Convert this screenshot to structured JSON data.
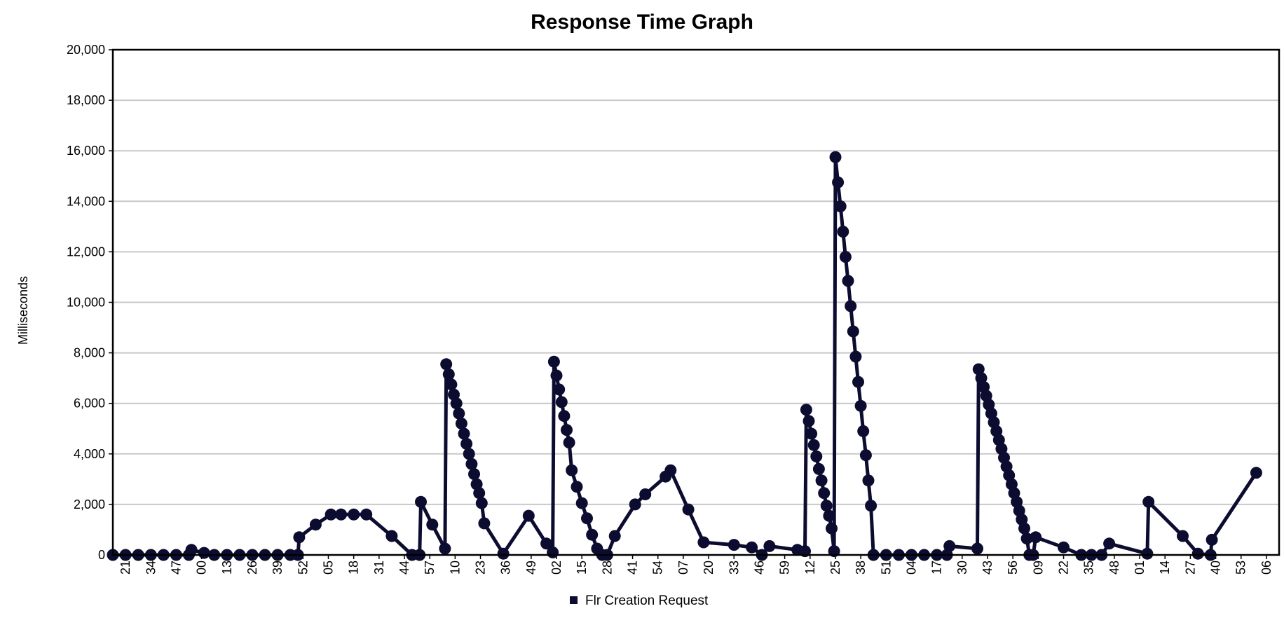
{
  "colors": {
    "series": "#0c0c30",
    "grid": "#c8c8c8",
    "axis": "#000000",
    "background": "#ffffff"
  },
  "chart_data": {
    "type": "line",
    "title": "Response Time Graph",
    "xlabel": "",
    "ylabel": "Milliseconds",
    "ylim": [
      0,
      20000
    ],
    "yticks": [
      "0",
      "2,000",
      "4,000",
      "6,000",
      "8,000",
      "10,000",
      "12,000",
      "14,000",
      "16,000",
      "18,000",
      "20,000"
    ],
    "ytick_values": [
      0,
      2000,
      4000,
      6000,
      8000,
      10000,
      12000,
      14000,
      16000,
      18000,
      20000
    ],
    "xticks": [
      "21",
      "34",
      "47",
      "00",
      "13",
      "26",
      "39",
      "52",
      "05",
      "18",
      "31",
      "44",
      "57",
      "10",
      "23",
      "36",
      "49",
      "02",
      "15",
      "28",
      "41",
      "54",
      "07",
      "20",
      "33",
      "46",
      "59",
      "12",
      "25",
      "38",
      "51",
      "04",
      "17",
      "30",
      "43",
      "56",
      "09",
      "22",
      "35",
      "48",
      "01",
      "14",
      "27",
      "40",
      "53",
      "06"
    ],
    "xlim": [
      0,
      46
    ],
    "grid": true,
    "legend_position": "bottom",
    "series": [
      {
        "name": "Flr Creation Request",
        "points": [
          [
            0,
            0
          ],
          [
            0.5,
            0
          ],
          [
            1,
            0
          ],
          [
            1.5,
            0
          ],
          [
            2,
            0
          ],
          [
            2.5,
            0
          ],
          [
            3,
            0
          ],
          [
            3.1,
            200
          ],
          [
            3.6,
            80
          ],
          [
            4,
            0
          ],
          [
            4.5,
            0
          ],
          [
            5,
            0
          ],
          [
            5.5,
            0
          ],
          [
            6,
            0
          ],
          [
            6.5,
            0
          ],
          [
            7,
            0
          ],
          [
            7.3,
            0
          ],
          [
            7.35,
            700
          ],
          [
            8,
            1200
          ],
          [
            8.6,
            1600
          ],
          [
            9,
            1600
          ],
          [
            9.5,
            1600
          ],
          [
            10,
            1600
          ],
          [
            11,
            750
          ],
          [
            11.8,
            0
          ],
          [
            12.1,
            0
          ],
          [
            12.15,
            2100
          ],
          [
            12.6,
            1200
          ],
          [
            13.1,
            250
          ],
          [
            13.15,
            7550
          ],
          [
            13.25,
            7150
          ],
          [
            13.35,
            6750
          ],
          [
            13.45,
            6350
          ],
          [
            13.55,
            6000
          ],
          [
            13.65,
            5600
          ],
          [
            13.75,
            5200
          ],
          [
            13.85,
            4800
          ],
          [
            13.95,
            4400
          ],
          [
            14.05,
            4000
          ],
          [
            14.15,
            3600
          ],
          [
            14.25,
            3200
          ],
          [
            14.35,
            2800
          ],
          [
            14.45,
            2450
          ],
          [
            14.55,
            2050
          ],
          [
            14.65,
            1250
          ],
          [
            15.4,
            50
          ],
          [
            16.4,
            1550
          ],
          [
            17.1,
            450
          ],
          [
            17.35,
            100
          ],
          [
            17.4,
            7650
          ],
          [
            17.5,
            7100
          ],
          [
            17.6,
            6550
          ],
          [
            17.7,
            6050
          ],
          [
            17.8,
            5500
          ],
          [
            17.9,
            4950
          ],
          [
            18.0,
            4450
          ],
          [
            18.1,
            3350
          ],
          [
            18.3,
            2700
          ],
          [
            18.5,
            2050
          ],
          [
            18.7,
            1450
          ],
          [
            18.9,
            800
          ],
          [
            19.1,
            250
          ],
          [
            19.3,
            0
          ],
          [
            19.5,
            0
          ],
          [
            19.8,
            750
          ],
          [
            20.6,
            2000
          ],
          [
            21,
            2400
          ],
          [
            21.8,
            3100
          ],
          [
            22.0,
            3350
          ],
          [
            22.7,
            1800
          ],
          [
            23.3,
            500
          ],
          [
            24.5,
            400
          ],
          [
            25.2,
            300
          ],
          [
            25.6,
            0
          ],
          [
            25.9,
            350
          ],
          [
            27,
            200
          ],
          [
            27.3,
            150
          ],
          [
            27.35,
            5750
          ],
          [
            27.45,
            5300
          ],
          [
            27.55,
            4800
          ],
          [
            27.65,
            4350
          ],
          [
            27.75,
            3900
          ],
          [
            27.85,
            3400
          ],
          [
            27.95,
            2950
          ],
          [
            28.05,
            2450
          ],
          [
            28.15,
            1950
          ],
          [
            28.25,
            1550
          ],
          [
            28.35,
            1050
          ],
          [
            28.45,
            150
          ],
          [
            28.5,
            15750
          ],
          [
            28.6,
            14750
          ],
          [
            28.7,
            13800
          ],
          [
            28.8,
            12800
          ],
          [
            28.9,
            11800
          ],
          [
            29.0,
            10850
          ],
          [
            29.1,
            9850
          ],
          [
            29.2,
            8850
          ],
          [
            29.3,
            7850
          ],
          [
            29.4,
            6850
          ],
          [
            29.5,
            5900
          ],
          [
            29.6,
            4900
          ],
          [
            29.7,
            3950
          ],
          [
            29.8,
            2950
          ],
          [
            29.9,
            1950
          ],
          [
            30.0,
            0
          ],
          [
            30.5,
            0
          ],
          [
            31,
            0
          ],
          [
            31.5,
            0
          ],
          [
            32,
            0
          ],
          [
            32.5,
            0
          ],
          [
            32.9,
            0
          ],
          [
            33.0,
            350
          ],
          [
            34.1,
            250
          ],
          [
            34.15,
            7350
          ],
          [
            34.25,
            7000
          ],
          [
            34.35,
            6650
          ],
          [
            34.45,
            6300
          ],
          [
            34.55,
            5950
          ],
          [
            34.65,
            5600
          ],
          [
            34.75,
            5250
          ],
          [
            34.85,
            4900
          ],
          [
            34.95,
            4550
          ],
          [
            35.05,
            4200
          ],
          [
            35.15,
            3850
          ],
          [
            35.25,
            3500
          ],
          [
            35.35,
            3150
          ],
          [
            35.45,
            2800
          ],
          [
            35.55,
            2450
          ],
          [
            35.65,
            2100
          ],
          [
            35.75,
            1750
          ],
          [
            35.85,
            1400
          ],
          [
            35.95,
            1050
          ],
          [
            36.05,
            650
          ],
          [
            36.15,
            0
          ],
          [
            36.3,
            0
          ],
          [
            36.4,
            700
          ],
          [
            37.5,
            300
          ],
          [
            38.2,
            0
          ],
          [
            38.6,
            0
          ],
          [
            39,
            0
          ],
          [
            39.3,
            450
          ],
          [
            40.8,
            50
          ],
          [
            40.85,
            2100
          ],
          [
            42.2,
            750
          ],
          [
            42.8,
            50
          ],
          [
            43.3,
            0
          ],
          [
            43.35,
            600
          ],
          [
            45.1,
            3250
          ]
        ]
      }
    ]
  }
}
